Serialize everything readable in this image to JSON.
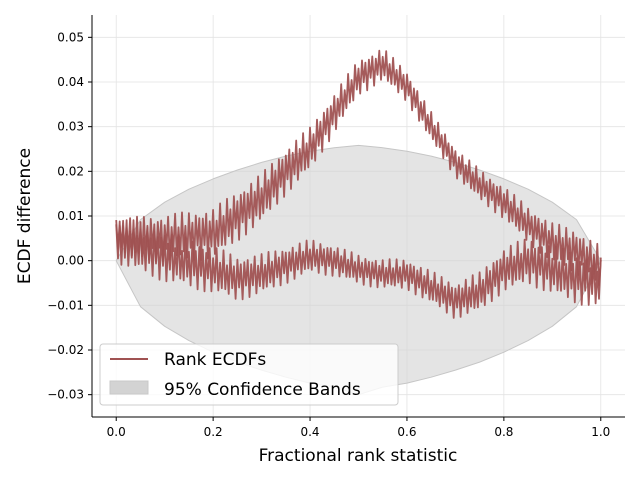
{
  "chart_data": {
    "type": "line",
    "title": "",
    "xlabel": "Fractional rank statistic",
    "ylabel": "ECDF difference",
    "xlim": [
      -0.05,
      1.05
    ],
    "ylim": [
      -0.035,
      0.055
    ],
    "xticks": [
      0.0,
      0.2,
      0.4,
      0.6,
      0.8,
      1.0
    ],
    "xtick_labels": [
      "0.0",
      "0.2",
      "0.4",
      "0.6",
      "0.8",
      "1.0"
    ],
    "yticks": [
      -0.03,
      -0.02,
      -0.01,
      0.0,
      0.01,
      0.02,
      0.03,
      0.04,
      0.05
    ],
    "ytick_labels": [
      "−0.03",
      "−0.02",
      "−0.01",
      "0.00",
      "0.01",
      "0.02",
      "0.03",
      "0.04",
      "0.05"
    ],
    "grid": true,
    "legend_position": "lower-left",
    "legend": [
      "Rank ECDFs",
      "95% Confidence Bands"
    ],
    "band": {
      "name": "95% Confidence Bands",
      "x": [
        0.0,
        0.05,
        0.1,
        0.15,
        0.2,
        0.25,
        0.3,
        0.35,
        0.4,
        0.45,
        0.5,
        0.55,
        0.6,
        0.65,
        0.7,
        0.75,
        0.8,
        0.85,
        0.9,
        0.95,
        1.0
      ],
      "upper": [
        0.0,
        0.0092,
        0.0131,
        0.016,
        0.0183,
        0.0203,
        0.022,
        0.0234,
        0.0245,
        0.0253,
        0.0258,
        0.0253,
        0.0245,
        0.0234,
        0.022,
        0.0203,
        0.0183,
        0.016,
        0.0131,
        0.0092,
        0.0
      ],
      "lower": [
        0.0,
        -0.0103,
        -0.0147,
        -0.0179,
        -0.0205,
        -0.0227,
        -0.0245,
        -0.0261,
        -0.0274,
        -0.0283,
        -0.03,
        -0.0283,
        -0.0274,
        -0.0261,
        -0.0245,
        -0.0227,
        -0.0205,
        -0.0179,
        -0.0147,
        -0.0103,
        0.0
      ],
      "color": "#d3d3d3"
    },
    "series": [
      {
        "name": "Rank ECDFs",
        "color": "#a05252",
        "x": [
          0.0,
          0.1,
          0.2,
          0.25,
          0.3,
          0.35,
          0.4,
          0.45,
          0.5,
          0.55,
          0.6,
          0.65,
          0.7,
          0.75,
          0.8,
          0.85,
          0.9,
          0.95,
          1.0
        ],
        "y": [
          0.005,
          0.005,
          0.006,
          0.01,
          0.014,
          0.02,
          0.025,
          0.033,
          0.041,
          0.044,
          0.039,
          0.03,
          0.022,
          0.017,
          0.013,
          0.008,
          0.004,
          0.002,
          -0.002
        ]
      },
      {
        "name": "Rank ECDFs",
        "color": "#a05252",
        "x": [
          0.0,
          0.1,
          0.2,
          0.25,
          0.3,
          0.35,
          0.4,
          0.45,
          0.5,
          0.55,
          0.6,
          0.65,
          0.7,
          0.75,
          0.8,
          0.85,
          0.9,
          0.95,
          1.0
        ],
        "y": [
          0.005,
          0.001,
          -0.002,
          -0.004,
          -0.003,
          -0.001,
          0.001,
          0.0,
          -0.002,
          -0.003,
          -0.003,
          -0.006,
          -0.009,
          -0.007,
          -0.002,
          0.0,
          -0.002,
          -0.004,
          -0.005
        ]
      }
    ]
  }
}
